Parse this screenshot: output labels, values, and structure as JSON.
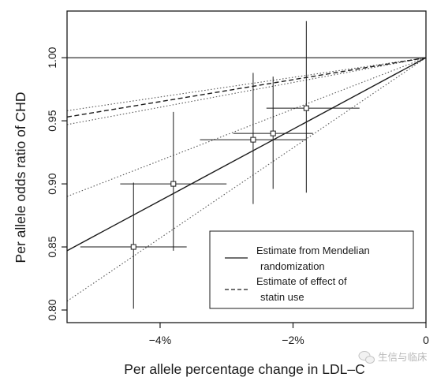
{
  "chart_data": {
    "type": "scatter",
    "xlabel": "Per allele percentage change in LDL–C",
    "ylabel": "Per allele odds ratio of CHD",
    "xlim": [
      -5.4,
      0
    ],
    "ylim": [
      0.79,
      1.037
    ],
    "x_ticks": [
      {
        "value": -4,
        "label": "−4%"
      },
      {
        "value": -2,
        "label": "−2%"
      },
      {
        "value": 0,
        "label": "0"
      }
    ],
    "y_ticks": [
      {
        "value": 0.8,
        "label": "0.80"
      },
      {
        "value": 0.85,
        "label": "0.85"
      },
      {
        "value": 0.9,
        "label": "0.90"
      },
      {
        "value": 0.95,
        "label": "0.95"
      },
      {
        "value": 1.0,
        "label": "1.00"
      }
    ],
    "reference_line": {
      "y": 1.0
    },
    "points": [
      {
        "x": -4.4,
        "y": 0.85,
        "x_low": -5.2,
        "x_high": -3.6,
        "y_low": 0.801,
        "y_high": 0.901
      },
      {
        "x": -3.8,
        "y": 0.9,
        "x_low": -4.6,
        "x_high": -3.0,
        "y_low": 0.847,
        "y_high": 0.957
      },
      {
        "x": -2.6,
        "y": 0.935,
        "x_low": -3.4,
        "x_high": -1.8,
        "y_low": 0.884,
        "y_high": 0.988
      },
      {
        "x": -2.3,
        "y": 0.94,
        "x_low": -2.9,
        "x_high": -1.7,
        "y_low": 0.896,
        "y_high": 0.985
      },
      {
        "x": -1.8,
        "y": 0.96,
        "x_low": -2.4,
        "x_high": -1.0,
        "y_low": 0.893,
        "y_high": 1.029
      }
    ],
    "series": [
      {
        "style": "solid",
        "x": [
          -5.4,
          0
        ],
        "y": [
          0.847,
          1.0
        ],
        "ci": [
          {
            "x": [
              -5.4,
              0
            ],
            "y": [
              0.807,
              1.0
            ]
          },
          {
            "x": [
              -5.4,
              0
            ],
            "y": [
              0.89,
              1.0
            ]
          }
        ]
      },
      {
        "style": "dashed",
        "x": [
          -5.4,
          0
        ],
        "y": [
          0.953,
          1.0
        ],
        "ci": [
          {
            "x": [
              -5.4,
              0
            ],
            "y": [
              0.947,
              1.0
            ]
          },
          {
            "x": [
              -5.4,
              0
            ],
            "y": [
              0.958,
              1.0
            ]
          }
        ]
      }
    ],
    "legend": {
      "position": "bottom-right",
      "entries": [
        {
          "style": "solid",
          "lines": [
            "Estimate from Mendelian",
            "randomization"
          ]
        },
        {
          "style": "dashed",
          "lines": [
            "Estimate of effect of",
            "statin use"
          ]
        }
      ]
    }
  },
  "watermark": {
    "text": "生信与临床",
    "icon": "wechat-icon"
  }
}
